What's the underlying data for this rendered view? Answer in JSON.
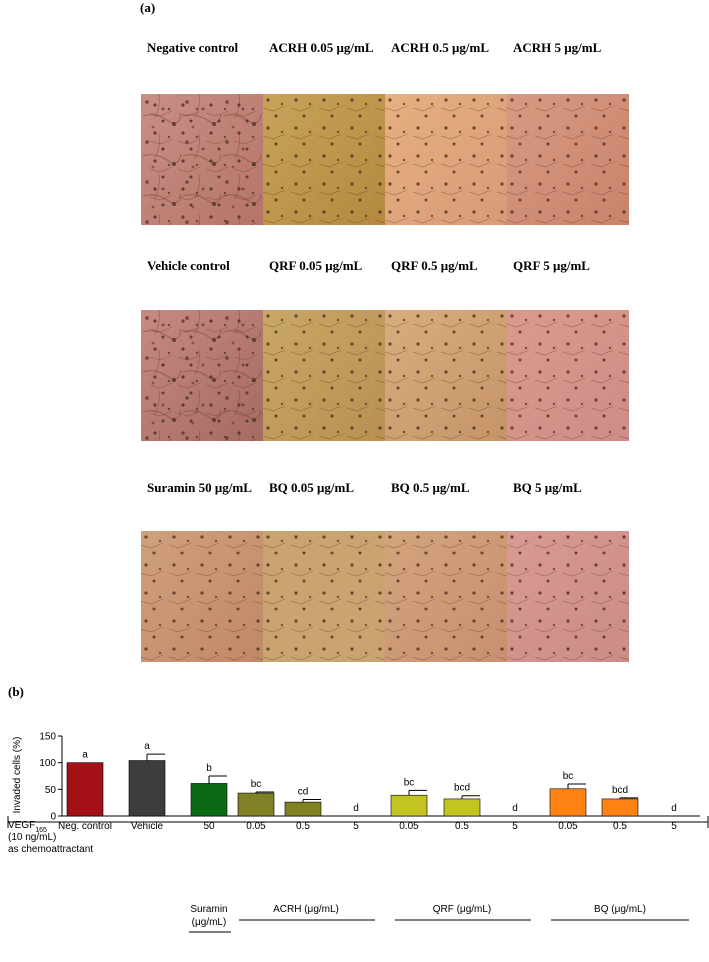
{
  "panel_a": {
    "label": "(a)",
    "rows": [
      {
        "titles": [
          "Negative control",
          "ACRH 0.05 μg/mL",
          "ACRH 0.5 μg/mL",
          "ACRH 5 μg/mL"
        ],
        "images": [
          "invasion-micrograph",
          "invasion-micrograph",
          "invasion-micrograph",
          "invasion-micrograph"
        ]
      },
      {
        "titles": [
          "Vehicle control",
          "QRF 0.05 μg/mL",
          "QRF 0.5 μg/mL",
          "QRF 5 μg/mL"
        ],
        "images": [
          "invasion-micrograph",
          "invasion-micrograph",
          "invasion-micrograph",
          "invasion-micrograph"
        ]
      },
      {
        "titles": [
          "Suramin 50 μg/mL",
          "BQ 0.05 μg/mL",
          "BQ 0.5 μg/mL",
          "BQ 5 μg/mL"
        ],
        "images": [
          "invasion-micrograph",
          "invasion-micrograph",
          "invasion-micrograph",
          "invasion-micrograph"
        ]
      }
    ]
  },
  "panel_b": {
    "label": "(b)",
    "vegf_label_main": "VEGF",
    "vegf_label_sub": "165",
    "vegf_label_line2": "(10 ng/mL)",
    "vegf_label_line3": "as chemoattractant",
    "groups": [
      {
        "line1": "Suramin",
        "line2": "(μg/mL)"
      },
      {
        "line1": "ACRH (μg/mL)"
      },
      {
        "line1": "QRF (μg/mL)"
      },
      {
        "line1": "BQ (μg/mL)"
      }
    ]
  },
  "chart_data": {
    "type": "bar",
    "ylabel": "Invaded cells (%)",
    "ylim": [
      0,
      150
    ],
    "yticks": [
      0,
      50,
      100,
      150
    ],
    "categories": [
      "Neg. control",
      "Vehicle",
      "50",
      "0.05",
      "0.5",
      "5",
      "0.05",
      "0.5",
      "5",
      "0.05",
      "0.5",
      "5"
    ],
    "values": [
      100,
      104,
      61,
      43,
      26,
      0,
      39,
      32,
      0,
      51,
      32,
      0
    ],
    "errors": [
      0,
      12,
      14,
      2,
      5,
      0,
      9,
      6,
      0,
      9,
      2,
      0
    ],
    "annotations": [
      "a",
      "a",
      "b",
      "bc",
      "cd",
      "d",
      "bc",
      "bcd",
      "d",
      "bc",
      "bcd",
      "d"
    ],
    "colors": [
      "#a31015",
      "#3d3d3d",
      "#0b6b14",
      "#808024",
      "#808024",
      "#808024",
      "#c2c421",
      "#c2c421",
      "#c2c421",
      "#ff8214",
      "#ff8214",
      "#ff8214"
    ]
  }
}
